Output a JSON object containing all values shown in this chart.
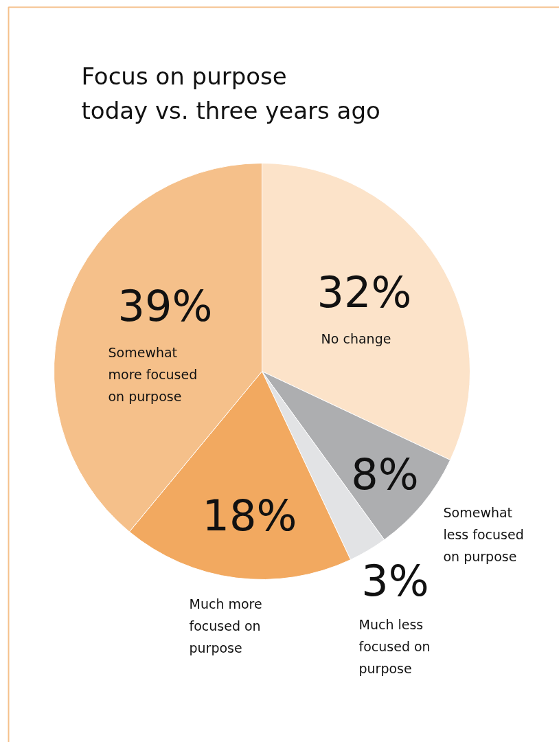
{
  "chart_data": {
    "type": "pie",
    "title": "Focus on purpose\ntoday vs. three years ago",
    "categories": [
      "No change",
      "Somewhat less focused on purpose",
      "Much less focused on purpose",
      "Much more focused on purpose",
      "Somewhat more focused on purpose"
    ],
    "values": [
      32,
      8,
      3,
      18,
      39
    ],
    "colors": [
      "#fce3c9",
      "#adaeb0",
      "#e2e3e5",
      "#f2a960",
      "#f5c08a"
    ],
    "value_labels": [
      "32%",
      "8%",
      "3%",
      "18%",
      "39%"
    ]
  }
}
